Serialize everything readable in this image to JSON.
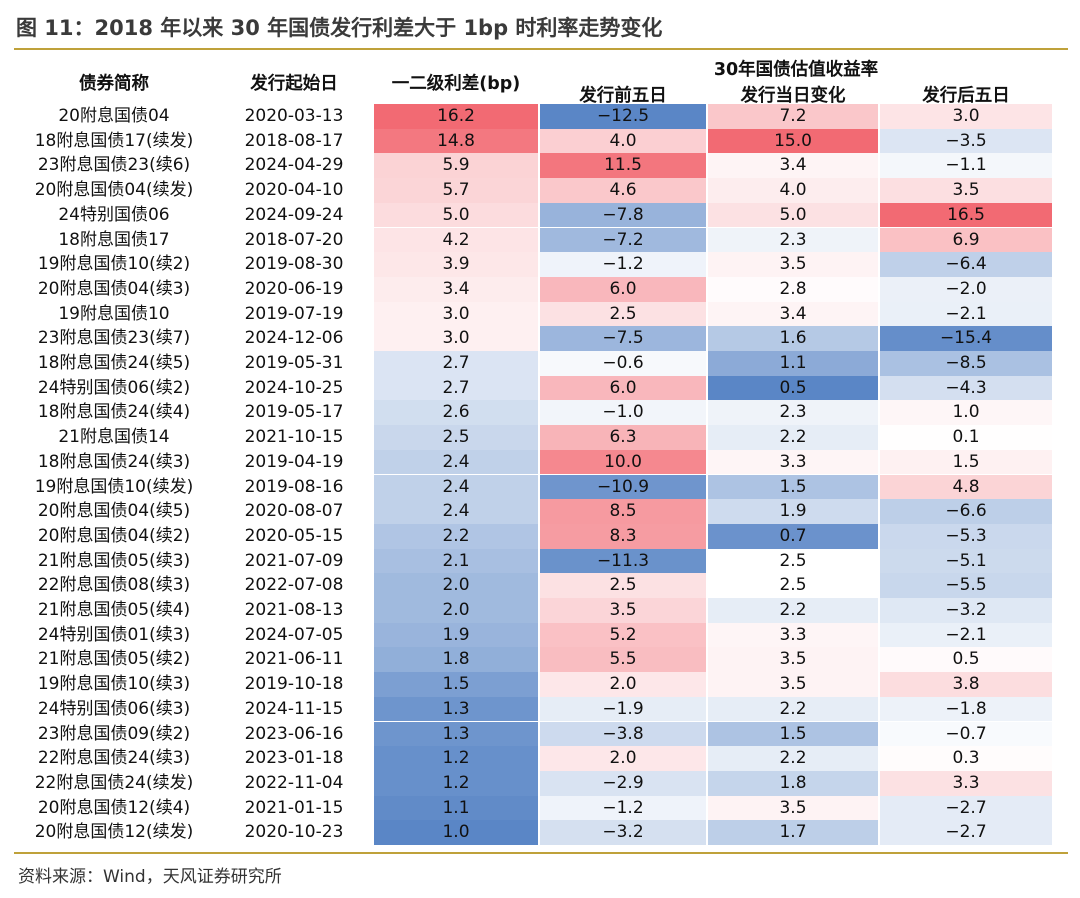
{
  "figure_title": "图 11：2018 年以来 30 年国债发行利差大于 1bp 时利率走势变化",
  "source": "资料来源：Wind，天风证券研究所",
  "colors": {
    "rule": "#bfa13a",
    "positive_strong": "#f26a73",
    "negative_strong": "#5a86c6",
    "neutral": "#ffffff"
  },
  "chart_data": {
    "type": "table",
    "headers": {
      "name": "债券简称",
      "date": "发行起始日",
      "spread": "一二级利差(bp)",
      "group": "30年国债估值收益率",
      "pre": "发行前五日",
      "day": "发行当日变化",
      "post": "发行后五日"
    },
    "rows": [
      {
        "name": "20附息国债04",
        "date": "2020-03-13",
        "spread": "16.2",
        "pre": "-12.5",
        "day": "7.2",
        "post": "3.0"
      },
      {
        "name": "18附息国债17(续发)",
        "date": "2018-08-17",
        "spread": "14.8",
        "pre": "4.0",
        "day": "15.0",
        "post": "-3.5"
      },
      {
        "name": "23附息国债23(续6)",
        "date": "2024-04-29",
        "spread": "5.9",
        "pre": "11.5",
        "day": "3.4",
        "post": "-1.1"
      },
      {
        "name": "20附息国债04(续发)",
        "date": "2020-04-10",
        "spread": "5.7",
        "pre": "4.6",
        "day": "4.0",
        "post": "3.5"
      },
      {
        "name": "24特别国债06",
        "date": "2024-09-24",
        "spread": "5.0",
        "pre": "-7.8",
        "day": "5.0",
        "post": "16.5"
      },
      {
        "name": "18附息国债17",
        "date": "2018-07-20",
        "spread": "4.2",
        "pre": "-7.2",
        "day": "2.3",
        "post": "6.9"
      },
      {
        "name": "19附息国债10(续2)",
        "date": "2019-08-30",
        "spread": "3.9",
        "pre": "-1.2",
        "day": "3.5",
        "post": "-6.4"
      },
      {
        "name": "20附息国债04(续3)",
        "date": "2020-06-19",
        "spread": "3.4",
        "pre": "6.0",
        "day": "2.8",
        "post": "-2.0"
      },
      {
        "name": "19附息国债10",
        "date": "2019-07-19",
        "spread": "3.0",
        "pre": "2.5",
        "day": "3.4",
        "post": "-2.1"
      },
      {
        "name": "23附息国债23(续7)",
        "date": "2024-12-06",
        "spread": "3.0",
        "pre": "-7.5",
        "day": "1.6",
        "post": "-15.4"
      },
      {
        "name": "18附息国债24(续5)",
        "date": "2019-05-31",
        "spread": "2.7",
        "pre": "-0.6",
        "day": "1.1",
        "post": "-8.5"
      },
      {
        "name": "24特别国债06(续2)",
        "date": "2024-10-25",
        "spread": "2.7",
        "pre": "6.0",
        "day": "0.5",
        "post": "-4.3"
      },
      {
        "name": "18附息国债24(续4)",
        "date": "2019-05-17",
        "spread": "2.6",
        "pre": "-1.0",
        "day": "2.3",
        "post": "1.0"
      },
      {
        "name": "21附息国债14",
        "date": "2021-10-15",
        "spread": "2.5",
        "pre": "6.3",
        "day": "2.2",
        "post": "0.1"
      },
      {
        "name": "18附息国债24(续3)",
        "date": "2019-04-19",
        "spread": "2.4",
        "pre": "10.0",
        "day": "3.3",
        "post": "1.5"
      },
      {
        "name": "19附息国债10(续发)",
        "date": "2019-08-16",
        "spread": "2.4",
        "pre": "-10.9",
        "day": "1.5",
        "post": "4.8"
      },
      {
        "name": "20附息国债04(续5)",
        "date": "2020-08-07",
        "spread": "2.4",
        "pre": "8.5",
        "day": "1.9",
        "post": "-6.6"
      },
      {
        "name": "20附息国债04(续2)",
        "date": "2020-05-15",
        "spread": "2.2",
        "pre": "8.3",
        "day": "0.7",
        "post": "-5.3"
      },
      {
        "name": "21附息国债05(续3)",
        "date": "2021-07-09",
        "spread": "2.1",
        "pre": "-11.3",
        "day": "2.5",
        "post": "-5.1"
      },
      {
        "name": "22附息国债08(续3)",
        "date": "2022-07-08",
        "spread": "2.0",
        "pre": "2.5",
        "day": "2.5",
        "post": "-5.5"
      },
      {
        "name": "21附息国债05(续4)",
        "date": "2021-08-13",
        "spread": "2.0",
        "pre": "3.5",
        "day": "2.2",
        "post": "-3.2"
      },
      {
        "name": "24特别国债01(续3)",
        "date": "2024-07-05",
        "spread": "1.9",
        "pre": "5.2",
        "day": "3.3",
        "post": "-2.1"
      },
      {
        "name": "21附息国债05(续2)",
        "date": "2021-06-11",
        "spread": "1.8",
        "pre": "5.5",
        "day": "3.5",
        "post": "0.5"
      },
      {
        "name": "19附息国债10(续3)",
        "date": "2019-10-18",
        "spread": "1.5",
        "pre": "2.0",
        "day": "3.5",
        "post": "3.8"
      },
      {
        "name": "24特别国债06(续3)",
        "date": "2024-11-15",
        "spread": "1.3",
        "pre": "-1.9",
        "day": "2.2",
        "post": "-1.8"
      },
      {
        "name": "23附息国债09(续2)",
        "date": "2023-06-16",
        "spread": "1.3",
        "pre": "-3.8",
        "day": "1.5",
        "post": "-0.7"
      },
      {
        "name": "22附息国债24(续3)",
        "date": "2023-01-18",
        "spread": "1.2",
        "pre": "2.0",
        "day": "2.2",
        "post": "0.3"
      },
      {
        "name": "22附息国债24(续发)",
        "date": "2022-11-04",
        "spread": "1.2",
        "pre": "-2.9",
        "day": "1.8",
        "post": "3.3"
      },
      {
        "name": "20附息国债12(续4)",
        "date": "2021-01-15",
        "spread": "1.1",
        "pre": "-1.2",
        "day": "3.5",
        "post": "-2.7"
      },
      {
        "name": "20附息国债12(续发)",
        "date": "2020-10-23",
        "spread": "1.0",
        "pre": "-3.2",
        "day": "1.7",
        "post": "-2.7"
      }
    ]
  }
}
